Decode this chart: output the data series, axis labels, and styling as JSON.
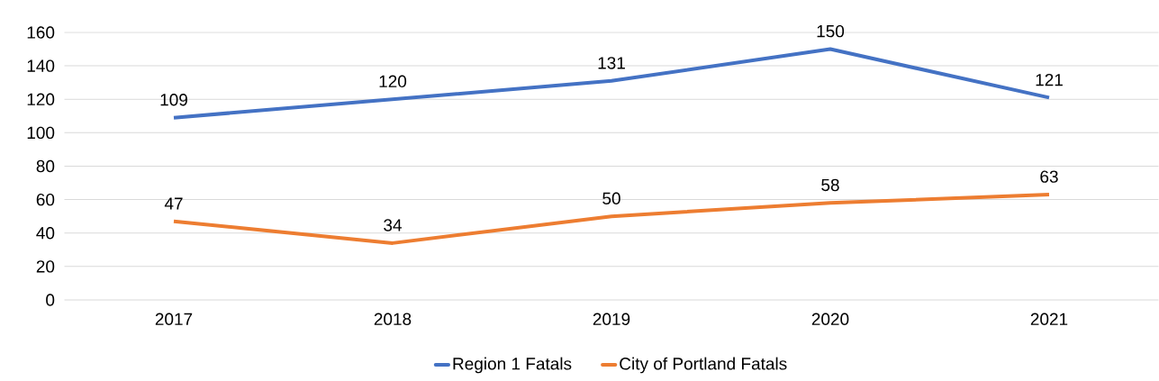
{
  "chart_data": {
    "type": "line",
    "categories": [
      "2017",
      "2018",
      "2019",
      "2020",
      "2021"
    ],
    "series": [
      {
        "name": "Region 1 Fatals",
        "color": "#4472c4",
        "values": [
          109,
          120,
          131,
          150,
          121
        ]
      },
      {
        "name": "City of Portland Fatals",
        "color": "#ed7d31",
        "values": [
          47,
          34,
          50,
          58,
          63
        ]
      }
    ],
    "ylim": [
      0,
      160
    ],
    "yticks": [
      0,
      20,
      40,
      60,
      80,
      100,
      120,
      140,
      160
    ],
    "grid": "y",
    "legend": "bottom",
    "data_labels": true,
    "marker": "none",
    "line_style": "solid"
  }
}
